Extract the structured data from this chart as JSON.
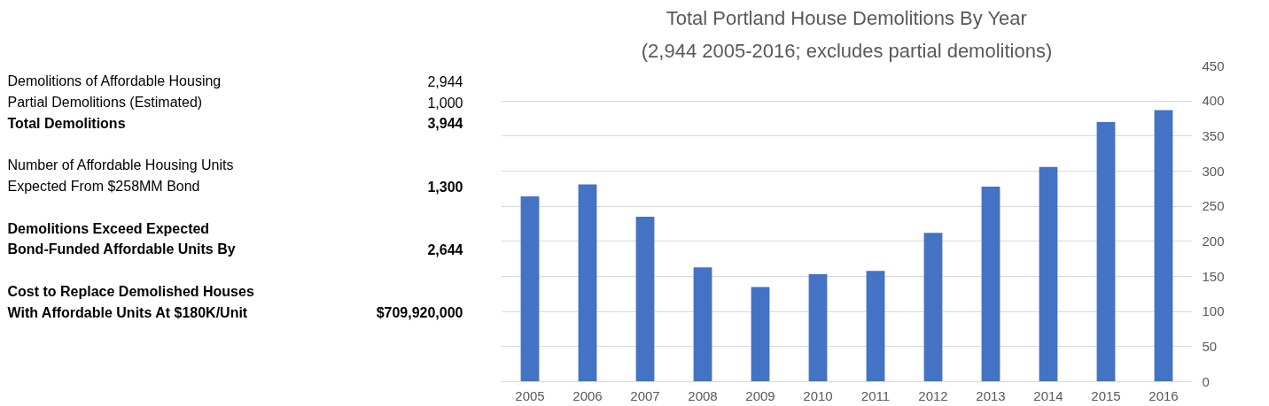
{
  "chart_data": [
    {
      "type": "other",
      "annotations": [
        "Demolitions of Affordable Housing",
        "2,944",
        "Partial Demolitions (Estimated)",
        "1,000",
        "Total Demolitions",
        "3,944",
        "Number of Affordable Housing Units",
        "Expected From $258MM Bond",
        "1,300",
        "Demolitions Exceed Expected",
        "Bond-Funded Affordable Units By",
        "2,644",
        "Cost to Replace Demolished Houses",
        "With Affordable Units At $180K/Unit",
        "$709,920,000"
      ]
    },
    {
      "type": "bar",
      "title": "Total Portland House Demolitions By Year",
      "subtitle": "(2,944 2005-2016; excludes partial demolitions)",
      "categories": [
        "2005",
        "2006",
        "2007",
        "2008",
        "2009",
        "2010",
        "2011",
        "2012",
        "2013",
        "2014",
        "2015",
        "2016"
      ],
      "values": [
        264,
        281,
        235,
        163,
        135,
        153,
        158,
        212,
        278,
        306,
        370,
        387
      ],
      "color": "#4472c4",
      "ylim": [
        0,
        450
      ],
      "yticks": [
        0,
        50,
        100,
        150,
        200,
        250,
        300,
        350,
        400,
        450
      ],
      "grid": "y"
    }
  ]
}
